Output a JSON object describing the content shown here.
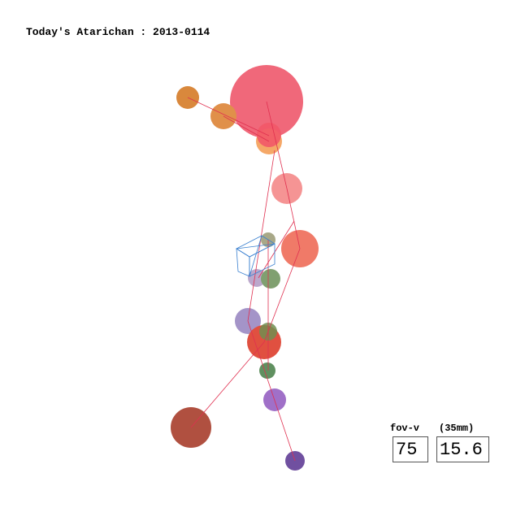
{
  "header": {
    "title": "Today's Atarichan : 2013-0114"
  },
  "controls": {
    "fov_label": "fov-v",
    "lens_label": "(35mm)",
    "fov_value": 75,
    "lens_value": 15.6
  }
}
